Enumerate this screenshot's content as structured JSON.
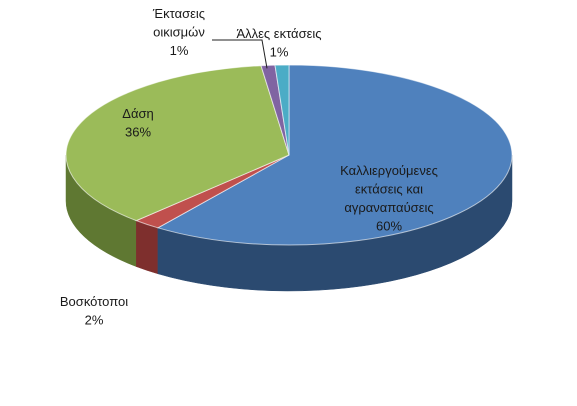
{
  "chart_data": {
    "type": "pie",
    "style": "3d",
    "title": "",
    "categories": [
      "Καλλιεργούμενες εκτάσεις και αγραναπαύσεις",
      "Βοσκότοποι",
      "Δάση",
      "Έκτασεις οικισμών",
      "Άλλες εκτάσεις"
    ],
    "values": [
      60,
      2,
      36,
      1,
      1
    ],
    "labels": [
      [
        "Καλλιεργούμενες",
        "εκτάσεις και",
        "αγραναπαύσεις",
        "60%"
      ],
      [
        "Βοσκότοποι",
        "2%"
      ],
      [
        "Δάση",
        "36%"
      ],
      [
        "Έκτασεις",
        "οικισμών",
        "1%"
      ],
      [
        "Άλλες εκτάσεις",
        "1%"
      ]
    ],
    "colors": [
      "#4F81BD",
      "#C0504D",
      "#9BBB59",
      "#8064A2",
      "#4BACC6"
    ],
    "side_colors": [
      "#2B4A70",
      "#7E2F2D",
      "#5F7832",
      "#4E3C66",
      "#2C7A8E"
    ],
    "legend": "none"
  }
}
